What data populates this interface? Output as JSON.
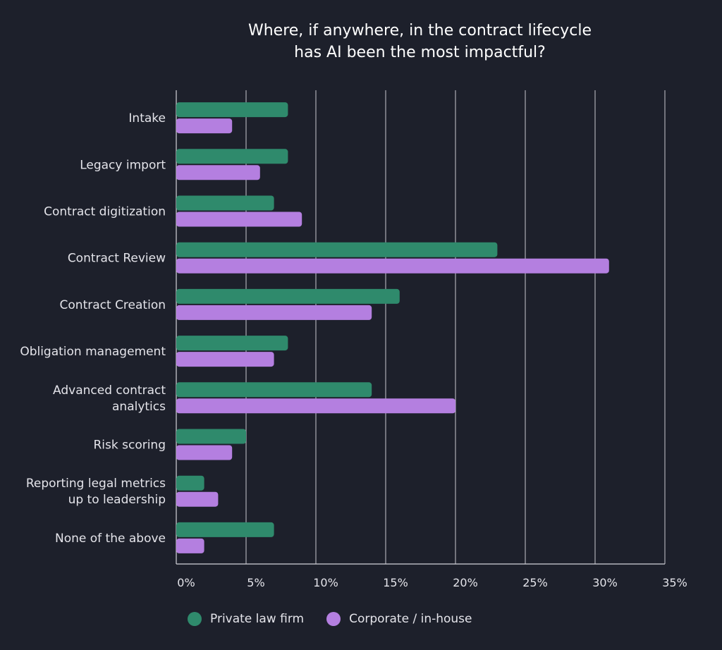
{
  "chart_data": {
    "type": "bar",
    "orientation": "horizontal",
    "title_lines": [
      "Where, if anywhere, in the contract lifecycle",
      "has AI been the most impactful?"
    ],
    "categories": [
      [
        "Intake"
      ],
      [
        "Legacy import"
      ],
      [
        "Contract digitization"
      ],
      [
        "Contract Review"
      ],
      [
        "Contract Creation"
      ],
      [
        "Obligation management"
      ],
      [
        "Advanced contract",
        "analytics"
      ],
      [
        "Risk scoring"
      ],
      [
        "Reporting legal metrics",
        "up to leadership"
      ],
      [
        "None of the above"
      ]
    ],
    "series": [
      {
        "name": "Private law firm",
        "color": "#2f8a6c",
        "values": [
          8,
          8,
          7,
          23,
          16,
          8,
          14,
          5,
          2,
          7
        ]
      },
      {
        "name": "Corporate / in-house",
        "color": "#b47fe0",
        "values": [
          4,
          6,
          9,
          31,
          14,
          7,
          20,
          4,
          3,
          2
        ]
      }
    ],
    "xlim": [
      0,
      35
    ],
    "xticks": [
      "0%",
      "5%",
      "10%",
      "15%",
      "20%",
      "25%",
      "30%",
      "35%"
    ],
    "grid": true,
    "legend_position": "bottom"
  }
}
